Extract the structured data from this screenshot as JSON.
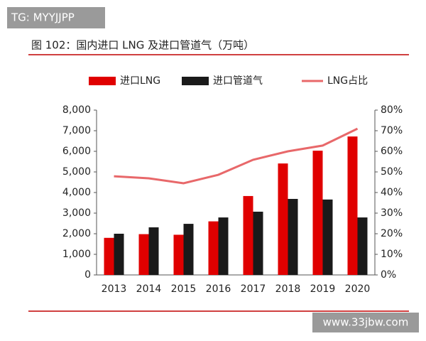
{
  "chart_data": {
    "type": "bar",
    "title": "图 102：国内进口 LNG 及进口管道气（万吨）",
    "annotations": [
      "TG: MYYJJPP",
      "www.33jbw.com"
    ],
    "categories": [
      "2013",
      "2014",
      "2015",
      "2016",
      "2017",
      "2018",
      "2019",
      "2020"
    ],
    "series": [
      {
        "name": "进口LNG",
        "type": "bar",
        "color": "#e00000",
        "values": [
          1800,
          1980,
          1950,
          2600,
          3830,
          5410,
          6030,
          6720
        ]
      },
      {
        "name": "进口管道气",
        "type": "bar",
        "color": "#1a1a1a",
        "values": [
          2000,
          2310,
          2480,
          2790,
          3070,
          3690,
          3660,
          2790
        ]
      },
      {
        "name": "LNG占比",
        "type": "line",
        "axis": "y2",
        "color": "#e8686a",
        "values": [
          47.9,
          46.9,
          44.5,
          48.6,
          55.9,
          60,
          62.8,
          71
        ]
      }
    ],
    "ylim": [
      0,
      8000
    ],
    "yticks": [
      0,
      {
        "value": 1000,
        "label": "1,000"
      },
      {
        "value": 2000,
        "label": "2,000"
      },
      {
        "value": 3000,
        "label": "3,000"
      },
      {
        "value": 4000,
        "label": "4,000"
      },
      {
        "value": 5000,
        "label": "5,000"
      },
      {
        "value": 6000,
        "label": "6,000"
      },
      {
        "value": 7000,
        "label": "7,000"
      },
      {
        "value": 8000,
        "label": "8,000"
      }
    ],
    "y2lim": [
      0,
      80
    ],
    "y2ticks": [
      {
        "value": 0,
        "label": "0%"
      },
      {
        "value": 10,
        "label": "10%"
      },
      {
        "value": 20,
        "label": "20%"
      },
      {
        "value": 30,
        "label": "30%"
      },
      {
        "value": 40,
        "label": "40%"
      },
      {
        "value": 50,
        "label": "50%"
      },
      {
        "value": 60,
        "label": "60%"
      },
      {
        "value": 70,
        "label": "70%"
      },
      {
        "value": 80,
        "label": "80%"
      }
    ],
    "grid": false,
    "legend": "top"
  }
}
